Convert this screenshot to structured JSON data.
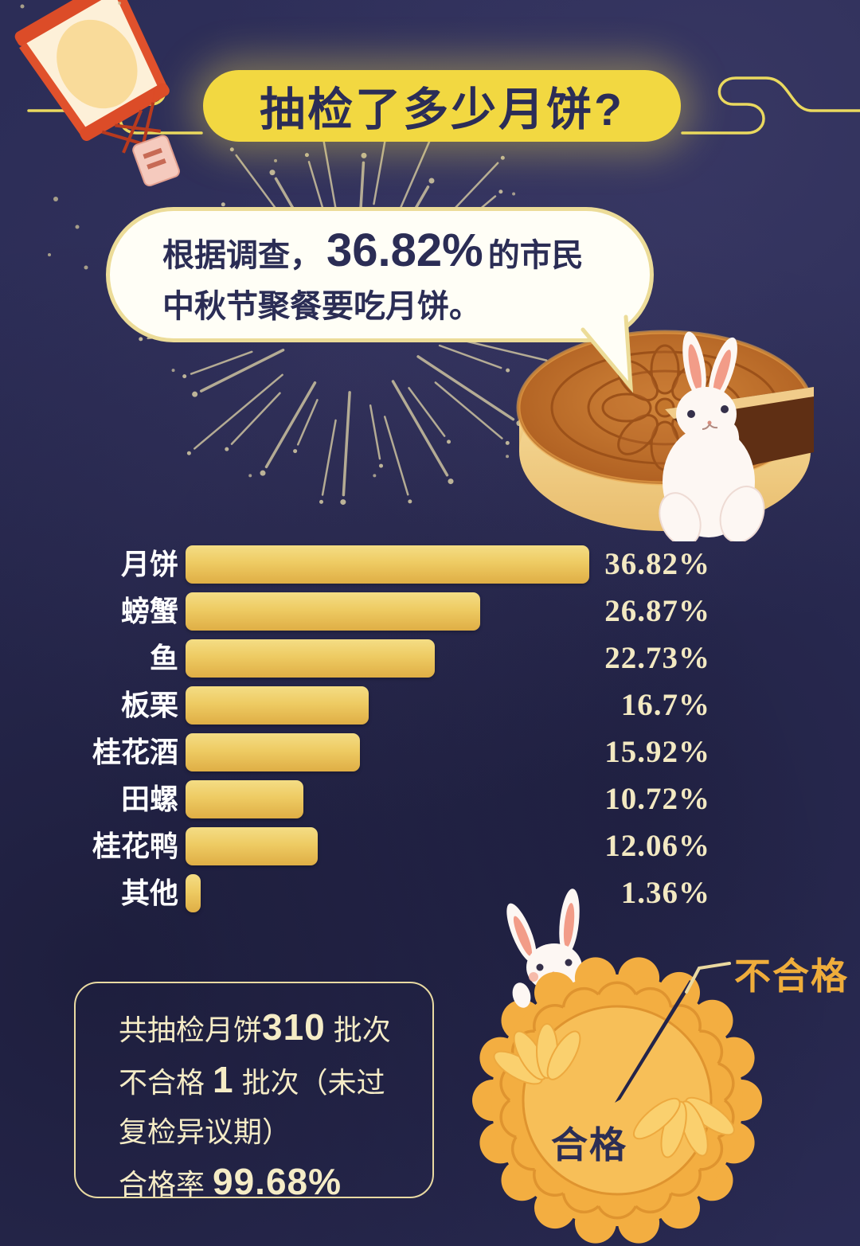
{
  "header": {
    "title": "抽检了多少月饼?"
  },
  "bubble": {
    "prefix": "根据调查，",
    "highlight": "36.82%",
    "suffix": " 的市民",
    "line2": "中秋节聚餐要吃月饼。"
  },
  "chart_data": [
    {
      "type": "bar",
      "orientation": "horizontal",
      "categories": [
        "月饼",
        "螃蟹",
        "鱼",
        "板栗",
        "桂花酒",
        "田螺",
        "桂花鸭",
        "其他"
      ],
      "values": [
        36.82,
        26.87,
        22.73,
        16.7,
        15.92,
        10.72,
        12.06,
        1.36
      ],
      "value_labels": [
        "36.82%",
        "26.87%",
        "22.73%",
        "16.7%",
        "15.92%",
        "10.72%",
        "12.06%",
        "1.36%"
      ],
      "xlim": [
        0,
        40
      ],
      "grid": false,
      "bar_color": "#eecb63",
      "category_color": "#ffffff",
      "value_color": "#f3e9c2"
    },
    {
      "type": "pie",
      "slices": [
        {
          "label": "合格",
          "value": 99.68
        },
        {
          "label": "不合格",
          "value": 0.32
        }
      ],
      "pie_color": "#f3ae41",
      "qualified_text_color": "#2c2e55",
      "unqualified_text_color": "#efad3b"
    }
  ],
  "footer": {
    "lines": [
      [
        {
          "t": "共抽检月饼"
        },
        {
          "t": "310",
          "b": true
        },
        {
          "t": " 批次"
        }
      ],
      [
        {
          "t": "不合格 "
        },
        {
          "t": "1",
          "b": true
        },
        {
          "t": " 批次（未过"
        }
      ],
      [
        {
          "t": "复检异议期）"
        }
      ],
      [
        {
          "t": "合格率 "
        },
        {
          "t": "99.68%",
          "b": true
        }
      ]
    ]
  },
  "pie": {
    "qualified_label": "合格",
    "unqualified_label": "不合格"
  },
  "colors": {
    "background": "#2c2d57",
    "title_pill": "#f2d841",
    "title_text": "#2b2d57",
    "cloud_line": "#ead95f",
    "bubble_bg": "#fffef6",
    "bubble_border": "#ecdc98",
    "bar_gold": "#eecb63",
    "value_cream": "#f3e9c2",
    "footer_border": "#e9daa2",
    "footer_text": "#f5ecc6",
    "pie_gold": "#f3ae41",
    "fail_label": "#efad3b",
    "firework": "#d6cba4"
  }
}
